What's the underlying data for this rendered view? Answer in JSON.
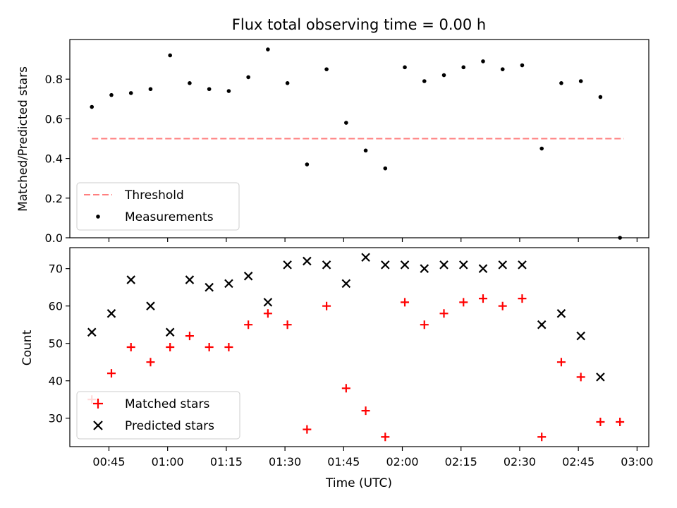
{
  "chart_data": [
    {
      "type": "scatter",
      "title": "Flux total observing time = 0.00 h",
      "ylabel": "Matched/Predicted stars",
      "ylim": [
        0.0,
        1.0
      ],
      "yticks": [
        "0.0",
        "0.2",
        "0.4",
        "0.6",
        "0.8"
      ],
      "grid": false,
      "legend_position": "lower-left",
      "threshold": {
        "name": "Threshold",
        "value": 0.5,
        "x_start": "00:40:38",
        "x_end": "02:56:38",
        "color": "#ff7f7f",
        "style": "dashed"
      },
      "series": [
        {
          "name": "Measurements",
          "color": "#000000",
          "marker": "dot",
          "x": [
            "00:40:38",
            "00:45:38",
            "00:50:38",
            "00:55:38",
            "01:00:38",
            "01:05:38",
            "01:10:38",
            "01:15:38",
            "01:20:38",
            "01:25:38",
            "01:30:38",
            "01:35:38",
            "01:40:38",
            "01:45:38",
            "01:50:38",
            "01:55:38",
            "02:00:38",
            "02:05:38",
            "02:10:38",
            "02:15:38",
            "02:20:38",
            "02:25:38",
            "02:30:38",
            "02:35:38",
            "02:40:38",
            "02:45:38",
            "02:50:38",
            "02:55:38"
          ],
          "y": [
            0.66,
            0.72,
            0.73,
            0.75,
            0.92,
            0.78,
            0.75,
            0.74,
            0.81,
            0.95,
            0.78,
            0.37,
            0.85,
            0.58,
            0.44,
            0.35,
            0.86,
            0.79,
            0.82,
            0.86,
            0.89,
            0.85,
            0.87,
            0.45,
            0.78,
            0.79,
            0.71,
            0.0
          ]
        }
      ]
    },
    {
      "type": "scatter",
      "xlabel": "Time (UTC)",
      "ylabel": "Count",
      "ylim": [
        22.4,
        75.6
      ],
      "yticks": [
        "30",
        "40",
        "50",
        "60",
        "70"
      ],
      "xticks": [
        "00:45",
        "01:00",
        "01:15",
        "01:30",
        "01:45",
        "02:00",
        "02:15",
        "02:30",
        "02:45",
        "03:00"
      ],
      "xlim": [
        "00:35:00",
        "03:03:00"
      ],
      "grid": false,
      "legend_position": "lower-left",
      "series": [
        {
          "name": "Matched stars",
          "color": "#ff0000",
          "marker": "plus",
          "x": [
            "00:40:38",
            "00:45:38",
            "00:50:38",
            "00:55:38",
            "01:00:38",
            "01:05:38",
            "01:10:38",
            "01:15:38",
            "01:20:38",
            "01:25:38",
            "01:30:38",
            "01:35:38",
            "01:40:38",
            "01:45:38",
            "01:50:38",
            "01:55:38",
            "02:00:38",
            "02:05:38",
            "02:10:38",
            "02:15:38",
            "02:20:38",
            "02:25:38",
            "02:30:38",
            "02:35:38",
            "02:40:38",
            "02:45:38",
            "02:50:38",
            "02:55:38"
          ],
          "y": [
            35,
            42,
            49,
            45,
            49,
            52,
            49,
            49,
            55,
            58,
            55,
            27,
            60,
            38,
            32,
            25,
            61,
            55,
            58,
            61,
            62,
            60,
            62,
            25,
            45,
            41,
            29,
            29
          ]
        },
        {
          "name": "Predicted stars",
          "color": "#000000",
          "marker": "x",
          "x": [
            "00:40:38",
            "00:45:38",
            "00:50:38",
            "00:55:38",
            "01:00:38",
            "01:05:38",
            "01:10:38",
            "01:15:38",
            "01:20:38",
            "01:25:38",
            "01:30:38",
            "01:35:38",
            "01:40:38",
            "01:45:38",
            "01:50:38",
            "01:55:38",
            "02:00:38",
            "02:05:38",
            "02:10:38",
            "02:15:38",
            "02:20:38",
            "02:25:38",
            "02:30:38",
            "02:35:38",
            "02:40:38",
            "02:45:38",
            "02:50:38"
          ],
          "y": [
            53,
            58,
            67,
            60,
            53,
            67,
            65,
            66,
            68,
            61,
            71,
            72,
            71,
            66,
            73,
            71,
            71,
            70,
            71,
            71,
            70,
            71,
            71,
            55,
            58,
            52,
            41
          ]
        }
      ]
    }
  ]
}
